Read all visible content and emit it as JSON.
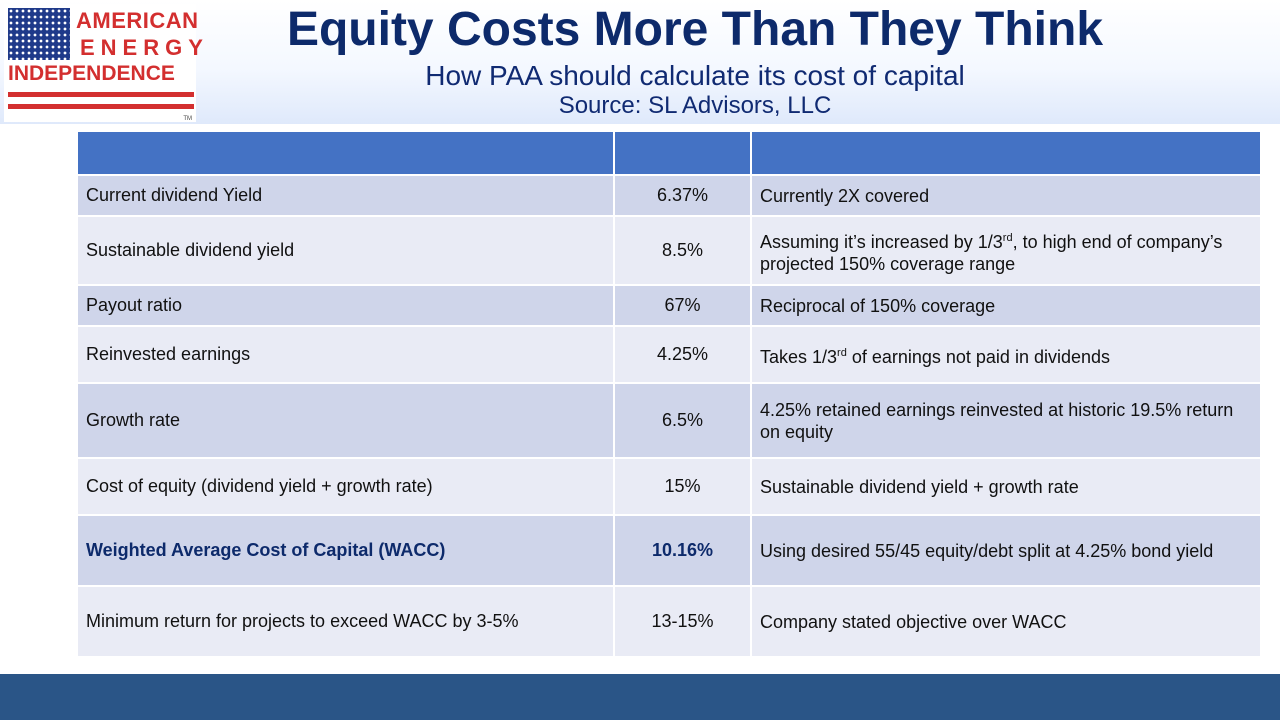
{
  "logo": {
    "line1": "AMERICAN",
    "line2": "ENERGY",
    "line3": "INDEPENDENCE",
    "tm": "TM",
    "brand_red": "#d32f2f",
    "brand_blue": "#1f3a8a"
  },
  "header": {
    "title": "Equity Costs More Than They Think",
    "subtitle": "How PAA should calculate its cost of capital",
    "source": "Source: SL Advisors, LLC"
  },
  "table": {
    "header_color": "#4472c4",
    "columns": [
      "",
      "",
      ""
    ],
    "rows": [
      {
        "metric": "Current dividend Yield",
        "value": "6.37%",
        "note": "Currently 2X covered"
      },
      {
        "metric": "Sustainable dividend yield",
        "value": "8.5%",
        "note_pre": "Assuming it’s increased by 1/3",
        "note_sup": "rd",
        "note_post": ", to high end of company’s projected 150% coverage range"
      },
      {
        "metric": "Payout ratio",
        "value": "67%",
        "note": "Reciprocal of 150% coverage"
      },
      {
        "metric": "Reinvested earnings",
        "value": "4.25%",
        "note_pre": "Takes 1/3",
        "note_sup": "rd",
        "note_post": " of earnings not paid in dividends"
      },
      {
        "metric": "Growth rate",
        "value": "6.5%",
        "note": "4.25% retained earnings reinvested at historic 19.5% return on equity"
      },
      {
        "metric": "Cost of equity (dividend yield + growth rate)",
        "value": "15%",
        "note": "Sustainable dividend yield + growth rate"
      },
      {
        "metric": "Weighted Average Cost of Capital (WACC)",
        "value": "10.16%",
        "note": "Using desired 55/45 equity/debt split at 4.25% bond yield"
      },
      {
        "metric": "Minimum return for projects to exceed WACC by 3-5%",
        "value": "13-15%",
        "note": "Company stated objective over WACC"
      }
    ]
  },
  "footer": {
    "color": "#2a5587"
  }
}
